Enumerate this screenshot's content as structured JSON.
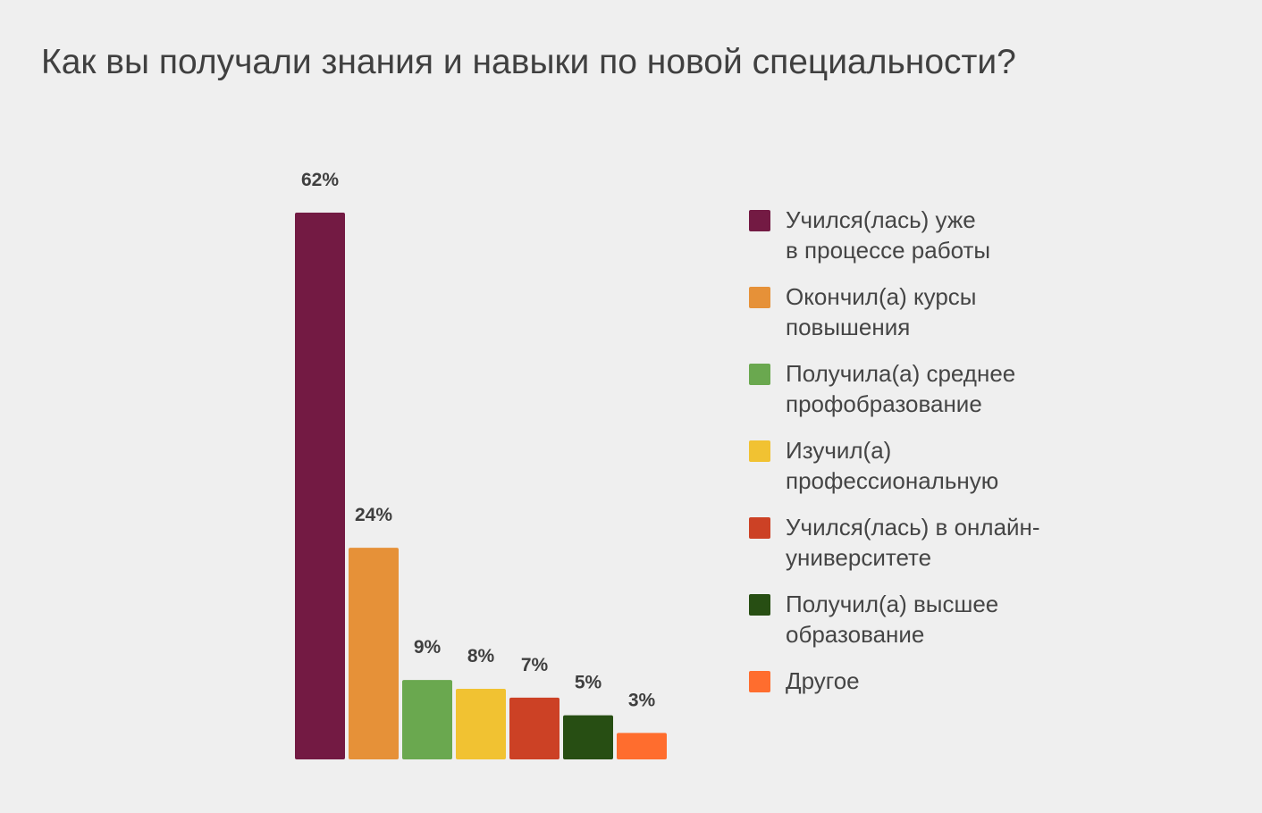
{
  "title": "Как вы получали знания и навыки по новой специальности?",
  "chart_data": {
    "type": "bar",
    "title": "Как вы получали знания и навыки по новой специальности?",
    "xlabel": "",
    "ylabel": "",
    "ylim": [
      0,
      62
    ],
    "grid": false,
    "legend_position": "right",
    "unit": "%",
    "categories": [
      "Учился(лась) уже\nв процессе работы",
      "Окончил(а) курсы\nповышения",
      "Получила(а) среднее\nпрофобразование",
      "Изучил(а)\nпрофессиональную",
      "Учился(лась) в онлайн-\nуниверситете",
      "Получил(а) высшее\nобразование",
      "Другое"
    ],
    "values": [
      62,
      24,
      9,
      8,
      7,
      5,
      3
    ],
    "value_labels": [
      "62%",
      "24%",
      "9%",
      "8%",
      "7%",
      "5%",
      "3%"
    ],
    "colors": [
      "#731a43",
      "#e69138",
      "#6aa84f",
      "#f1c232",
      "#cc4125",
      "#274e13",
      "#ff6d2e"
    ]
  }
}
